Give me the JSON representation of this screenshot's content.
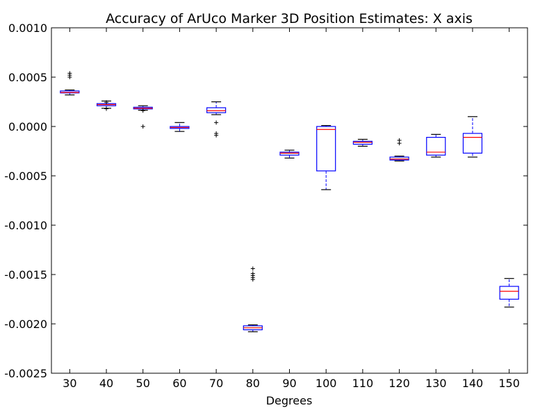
{
  "chart_data": {
    "type": "box",
    "title": "Accuracy of ArUco Marker 3D Position Estimates: X axis",
    "xlabel": "Degrees",
    "ylabel": "",
    "ylim": [
      -0.0025,
      0.001
    ],
    "y_ticks": [
      "0.0010",
      "0.0005",
      "0.0000",
      "-0.0005",
      "-0.0010",
      "-0.0015",
      "-0.0020",
      "-0.0025"
    ],
    "y_tick_values": [
      0.001,
      0.0005,
      0.0,
      -0.0005,
      -0.001,
      -0.0015,
      -0.002,
      -0.0025
    ],
    "categories": [
      "30",
      "40",
      "50",
      "60",
      "70",
      "80",
      "90",
      "100",
      "110",
      "120",
      "130",
      "140",
      "150"
    ],
    "boxes": [
      {
        "whisker_low": 0.00032,
        "q1": 0.00034,
        "median": 0.000345,
        "q3": 0.00036,
        "whisker_high": 0.00037,
        "outliers": [
          0.0005,
          0.00052,
          0.00054
        ]
      },
      {
        "whisker_low": 0.000185,
        "q1": 0.00021,
        "median": 0.000222,
        "q3": 0.000232,
        "whisker_high": 0.000258,
        "outliers": [
          0.00018,
          0.000245
        ]
      },
      {
        "whisker_low": 0.000165,
        "q1": 0.000178,
        "median": 0.000185,
        "q3": 0.000195,
        "whisker_high": 0.00021,
        "outliers": [
          0.0,
          0.00016
        ]
      },
      {
        "whisker_low": -5e-05,
        "q1": -2e-05,
        "median": -1e-05,
        "q3": 0.0,
        "whisker_high": 4e-05,
        "outliers": []
      },
      {
        "whisker_low": 0.00012,
        "q1": 0.00014,
        "median": 0.00016,
        "q3": 0.00019,
        "whisker_high": 0.00025,
        "outliers": [
          4e-05,
          -7e-05,
          -9e-05
        ]
      },
      {
        "whisker_low": -0.00208,
        "q1": -0.00206,
        "median": -0.00204,
        "q3": -0.00202,
        "whisker_high": -0.00201,
        "outliers": [
          -0.00144,
          -0.00149,
          -0.00151,
          -0.00153,
          -0.00155
        ]
      },
      {
        "whisker_low": -0.00032,
        "q1": -0.00029,
        "median": -0.00027,
        "q3": -0.00026,
        "whisker_high": -0.00024,
        "outliers": []
      },
      {
        "whisker_low": -0.00064,
        "q1": -0.00045,
        "median": -3e-05,
        "q3": 0.0,
        "whisker_high": 1e-05,
        "outliers": []
      },
      {
        "whisker_low": -0.0002,
        "q1": -0.00018,
        "median": -0.00016,
        "q3": -0.00015,
        "whisker_high": -0.00013,
        "outliers": []
      },
      {
        "whisker_low": -0.00035,
        "q1": -0.00034,
        "median": -0.00033,
        "q3": -0.00031,
        "whisker_high": -0.0003,
        "outliers": [
          -0.00014,
          -0.00017
        ]
      },
      {
        "whisker_low": -0.00031,
        "q1": -0.00029,
        "median": -0.00026,
        "q3": -0.00011,
        "whisker_high": -8e-05,
        "outliers": []
      },
      {
        "whisker_low": -0.00031,
        "q1": -0.00027,
        "median": -0.00011,
        "q3": -7e-05,
        "whisker_high": 0.0001,
        "outliers": []
      },
      {
        "whisker_low": -0.00183,
        "q1": -0.00175,
        "median": -0.00167,
        "q3": -0.00162,
        "whisker_high": -0.00154,
        "outliers": []
      }
    ],
    "colors": {
      "box": "#0000ff",
      "median": "#ff0000",
      "whisker": "#000000",
      "outlier": "#000000"
    },
    "grid": false,
    "legend": "none"
  }
}
